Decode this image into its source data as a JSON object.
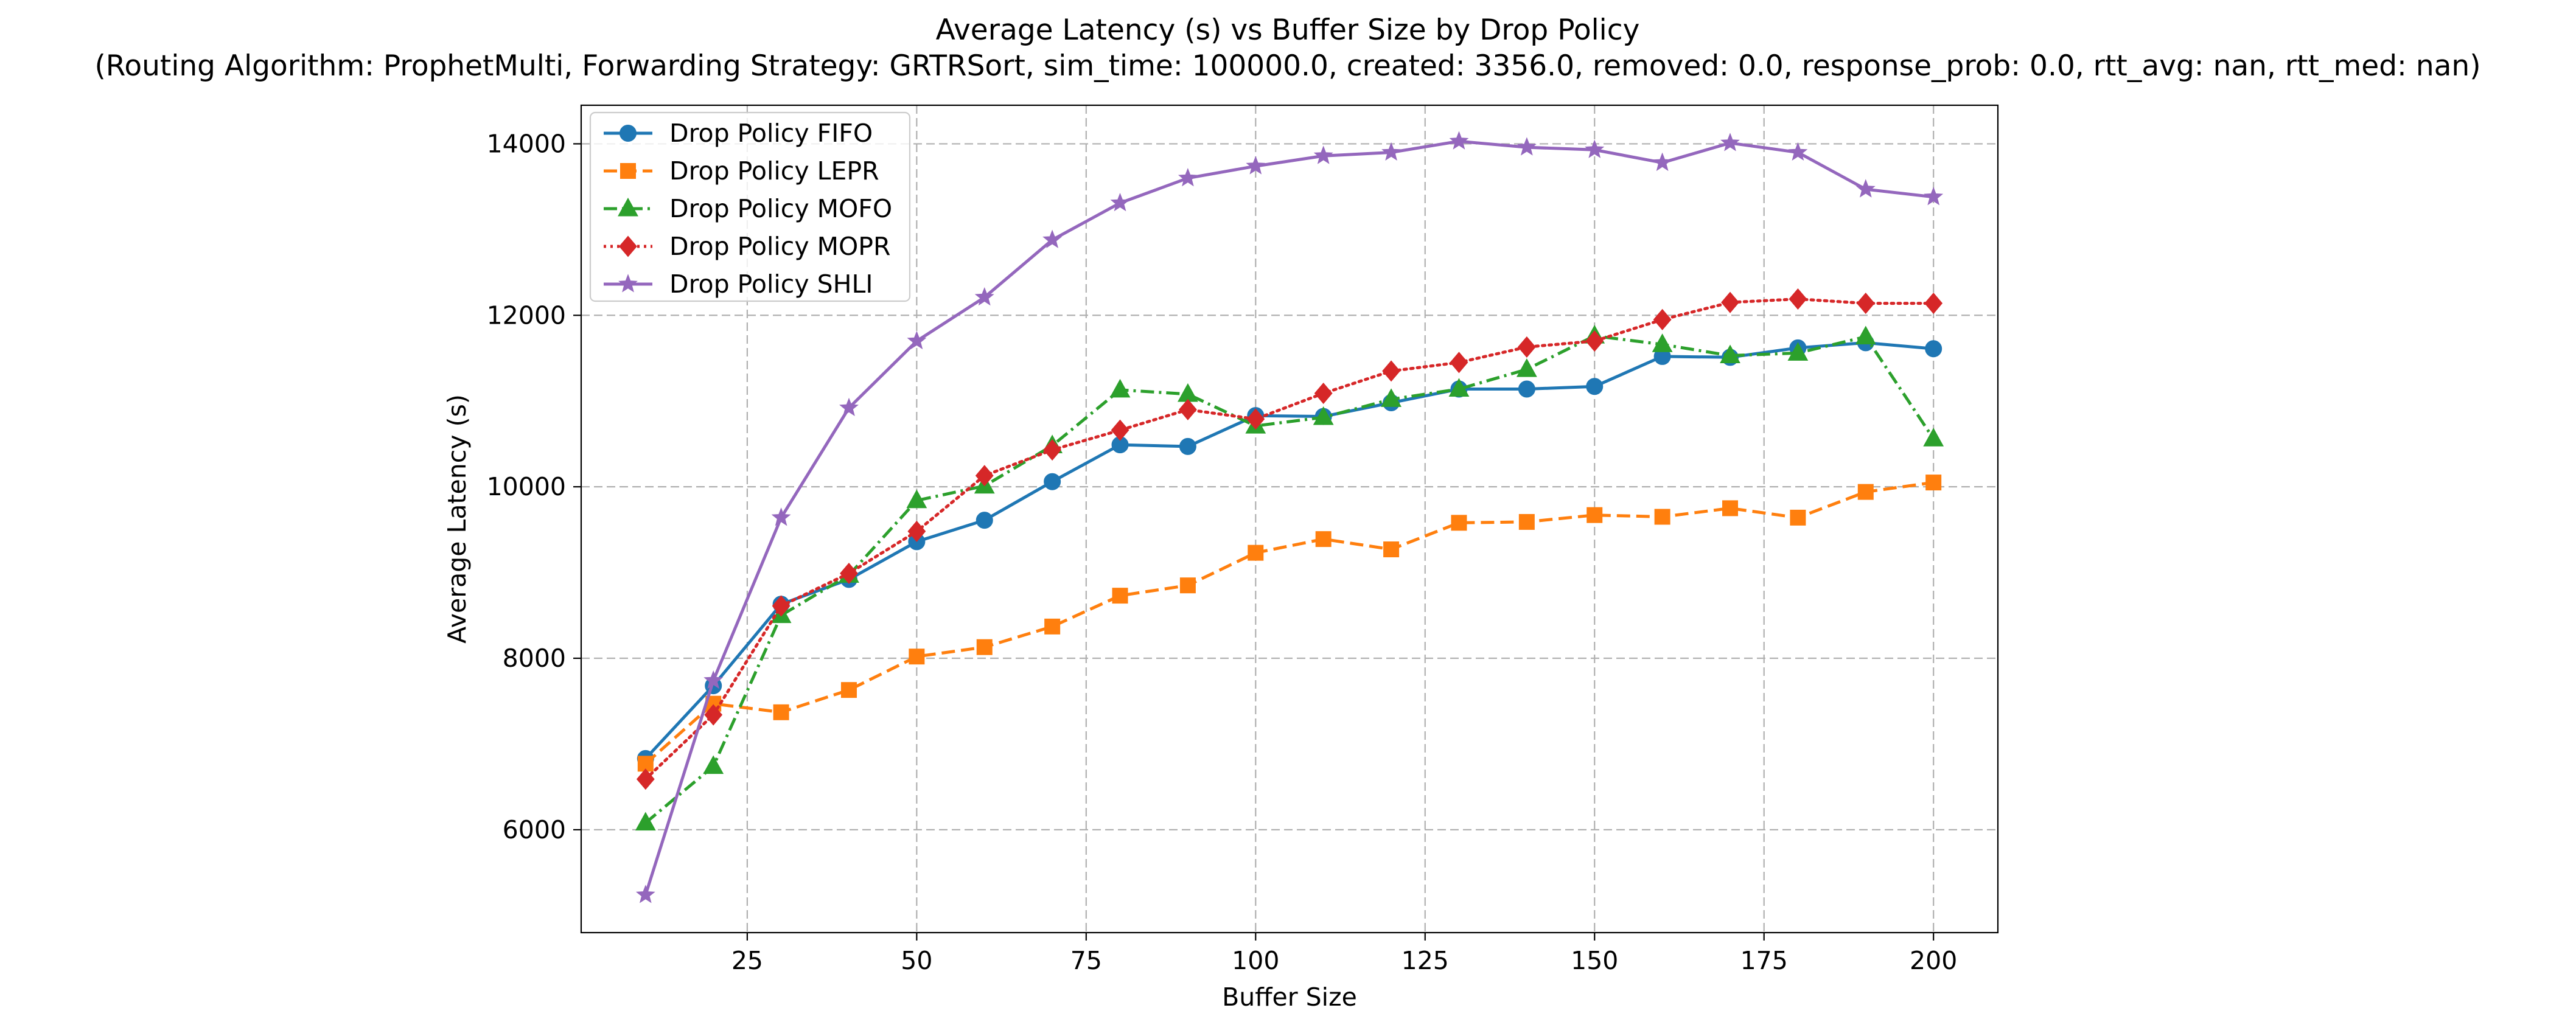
{
  "chart_data": {
    "type": "line",
    "title": "Average Latency (s) vs Buffer Size by Drop Policy",
    "subtitle": "(Routing Algorithm: ProphetMulti, Forwarding Strategy: GRTRSort, sim_time: 100000.0, created: 3356.0, removed: 0.0, response_prob: 0.0, rtt_avg: nan, rtt_med: nan)",
    "xlabel": "Buffer Size",
    "ylabel": "Average Latency (s)",
    "xlim": [
      0.5,
      209.5
    ],
    "ylim": [
      4800,
      14450
    ],
    "xticks": [
      25,
      50,
      75,
      100,
      125,
      150,
      175,
      200
    ],
    "yticks": [
      6000,
      8000,
      10000,
      12000,
      14000
    ],
    "grid": true,
    "legend_position": "top-left",
    "x": [
      10,
      20,
      30,
      40,
      50,
      60,
      70,
      80,
      90,
      100,
      110,
      120,
      130,
      140,
      150,
      160,
      170,
      180,
      190,
      200
    ],
    "series": [
      {
        "name": "Drop Policy FIFO",
        "color": "#1f77b4",
        "marker": "circle",
        "dash": "solid",
        "values": [
          6830,
          7680,
          8630,
          8920,
          9360,
          9610,
          10060,
          10490,
          10470,
          10830,
          10820,
          10980,
          11140,
          11140,
          11170,
          11520,
          11510,
          11620,
          11680,
          11610
        ]
      },
      {
        "name": "Drop Policy LEPR",
        "color": "#ff7f0e",
        "marker": "square",
        "dash": "dashed",
        "values": [
          6770,
          7470,
          7370,
          7630,
          8020,
          8130,
          8370,
          8730,
          8850,
          9230,
          9390,
          9270,
          9580,
          9590,
          9670,
          9650,
          9750,
          9640,
          9940,
          10050
        ]
      },
      {
        "name": "Drop Policy MOFO",
        "color": "#2ca02c",
        "marker": "triangle",
        "dash": "dashdot",
        "values": [
          6080,
          6740,
          8500,
          8970,
          9840,
          10010,
          10480,
          11130,
          11080,
          10710,
          10810,
          11020,
          11140,
          11370,
          11760,
          11660,
          11530,
          11560,
          11750,
          10560
        ]
      },
      {
        "name": "Drop Policy MOPR",
        "color": "#d62728",
        "marker": "diamond",
        "dash": "dotted",
        "values": [
          6590,
          7340,
          8610,
          8990,
          9480,
          10130,
          10430,
          10660,
          10900,
          10790,
          11090,
          11350,
          11450,
          11630,
          11700,
          11950,
          12150,
          12190,
          12140,
          12140
        ]
      },
      {
        "name": "Drop Policy SHLI",
        "color": "#9467bd",
        "marker": "star",
        "dash": "solid",
        "values": [
          5240,
          7740,
          9640,
          10920,
          11700,
          12210,
          12880,
          13310,
          13600,
          13740,
          13860,
          13900,
          14030,
          13960,
          13930,
          13780,
          14010,
          13900,
          13470,
          13380
        ]
      }
    ]
  }
}
